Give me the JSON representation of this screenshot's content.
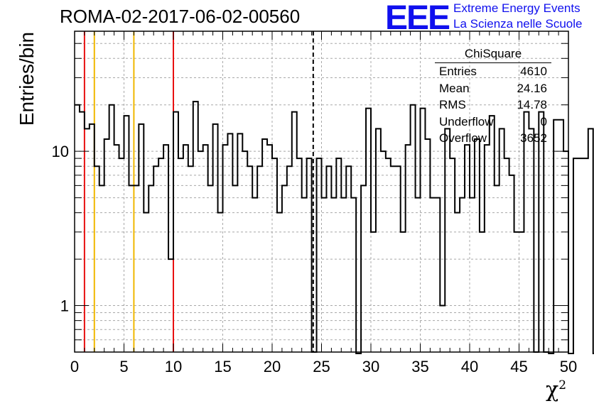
{
  "header": {
    "title": "ROMA-02-2017-06-02-00560",
    "logo_mark": "EEE",
    "logo_line1": "Extreme Energy Events",
    "logo_line2": "La Scienza nelle Scuole",
    "logo_color": "#1010ee"
  },
  "stats": {
    "name": "ChiSquare",
    "rows": [
      {
        "label": "Entries",
        "value": "4610"
      },
      {
        "label": "Mean",
        "value": "24.16"
      },
      {
        "label": "RMS",
        "value": "14.78"
      },
      {
        "label": "Underflow",
        "value": "0"
      },
      {
        "label": "Overflow",
        "value": "3652"
      }
    ]
  },
  "chart_data": {
    "type": "bar",
    "style": "step-histogram",
    "xlabel": "χ",
    "xlabel_sup": "2",
    "ylabel": "Entries/bin",
    "xlim": [
      0,
      50
    ],
    "ylim": [
      0.5,
      60
    ],
    "yscale": "log",
    "grid": true,
    "bin_width": 0.5,
    "x_ticks": [
      "0",
      "5",
      "10",
      "15",
      "20",
      "25",
      "30",
      "35",
      "40",
      "45",
      "50"
    ],
    "y_ticks": [
      {
        "value": 1,
        "label": "1"
      },
      {
        "value": 10,
        "label": "10"
      }
    ],
    "values": [
      20,
      18,
      14,
      15,
      8,
      6,
      12,
      20,
      11,
      9,
      17,
      6,
      6,
      15,
      4,
      6,
      8,
      9,
      11,
      2,
      18,
      9,
      11,
      8,
      21,
      10,
      11,
      6,
      15,
      4,
      11,
      13,
      6,
      13,
      10,
      8,
      5,
      8,
      12,
      11,
      9,
      4,
      6,
      8,
      18,
      9,
      5,
      9,
      0.5,
      9,
      5,
      8,
      5,
      9,
      5,
      8,
      5,
      0,
      6,
      19,
      3,
      14,
      10,
      9,
      8,
      8,
      3,
      11,
      20,
      5,
      19,
      12,
      5,
      5,
      1,
      14,
      9,
      4,
      5,
      11,
      5,
      12,
      3,
      11,
      17,
      6,
      14,
      9,
      7,
      3,
      3,
      18,
      14,
      0.5,
      18,
      0.5,
      0,
      16,
      16,
      10,
      0,
      9,
      9,
      9,
      14,
      0,
      0,
      0,
      0,
      0
    ],
    "vlines": [
      {
        "x": 1,
        "color": "#e81010",
        "style": "solid"
      },
      {
        "x": 2,
        "color": "#f0b800",
        "style": "solid"
      },
      {
        "x": 6,
        "color": "#f0b800",
        "style": "solid"
      },
      {
        "x": 10,
        "color": "#e81010",
        "style": "solid"
      },
      {
        "x": 24.16,
        "color": "#000000",
        "style": "dashed"
      }
    ]
  }
}
